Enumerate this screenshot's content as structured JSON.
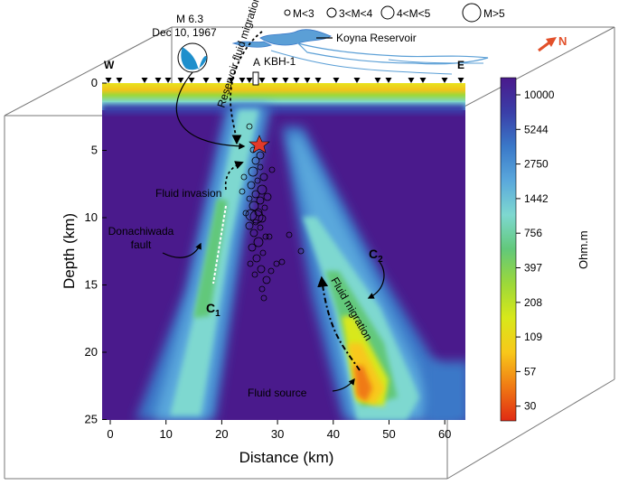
{
  "legend": {
    "items": [
      "M<3",
      "3<M<4",
      "4<M<5",
      "M>5"
    ]
  },
  "event": {
    "magnitude": "M 6.3",
    "date": "Dec 10, 1967"
  },
  "labels": {
    "reservoir": "Koyna Reservoir",
    "borehole": "KBH-1",
    "north": "N",
    "west": "W",
    "east": "E",
    "reservoir_migration": "Reservoir fluid migration",
    "fluid_invasion": "Fluid invasion",
    "fault": "Donachiwada fault",
    "fault_line1": "Donachiwada",
    "fault_line2": "fault",
    "c1": "C",
    "c1_sub": "1",
    "c2": "C",
    "c2_sub": "2",
    "fluid_migration": "Fluid migration",
    "fluid_source": "Fluid source"
  },
  "axes": {
    "xlabel": "Distance (km)",
    "ylabel": "Depth (km)",
    "xticks": [
      "0",
      "10",
      "20",
      "30",
      "40",
      "50",
      "60"
    ],
    "yticks": [
      "0",
      "5",
      "10",
      "15",
      "20",
      "25"
    ]
  },
  "colorbar": {
    "unit": "Ohm.m",
    "ticks": [
      "10000",
      "5244",
      "2750",
      "1442",
      "756",
      "397",
      "208",
      "109",
      "57",
      "30"
    ],
    "colors": [
      "#4a1a8c",
      "#3a3ea8",
      "#3a78c8",
      "#5aa8dc",
      "#7ed8d0",
      "#62c87a",
      "#9cd83a",
      "#d8e81a",
      "#f8c81a",
      "#f07a14",
      "#e02a14"
    ]
  }
}
